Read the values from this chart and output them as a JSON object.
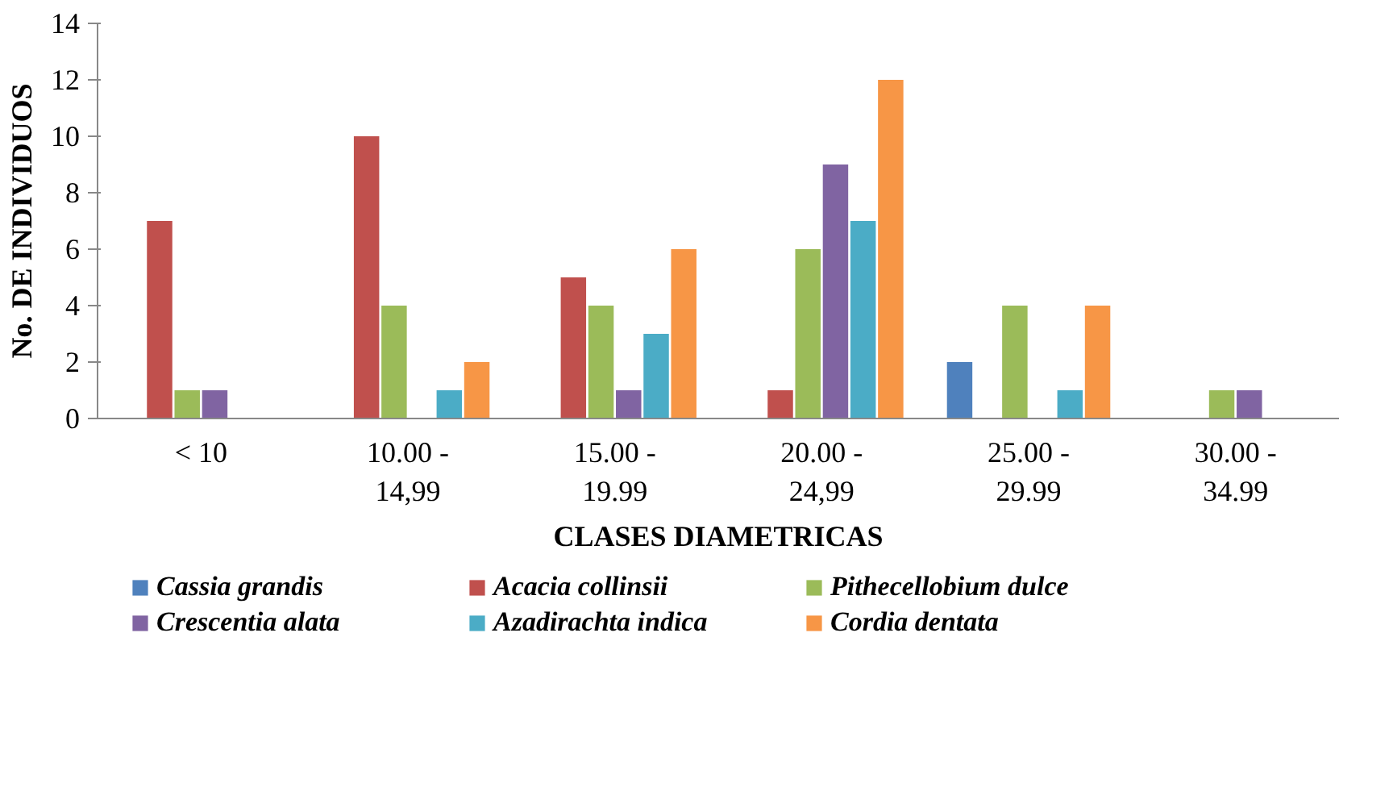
{
  "chart_data": {
    "type": "bar",
    "xlabel": "CLASES DIAMETRICAS",
    "ylabel": "No. DE INDIVIDUOS",
    "categories": [
      "< 10",
      "10.00 - 14,99",
      "15.00 - 19.99",
      "20.00 - 24,99",
      "25.00 - 29.99",
      "30.00 - 34.99"
    ],
    "series": [
      {
        "name": "Cassia grandis",
        "color": "#4f81bd",
        "values": [
          0,
          0,
          0,
          0,
          2,
          0
        ]
      },
      {
        "name": "Acacia collinsii",
        "color": "#c0504d",
        "values": [
          7,
          10,
          5,
          1,
          0,
          0
        ]
      },
      {
        "name": "Pithecellobium dulce",
        "color": "#9bbb59",
        "values": [
          1,
          4,
          4,
          6,
          4,
          1
        ]
      },
      {
        "name": "Crescentia alata",
        "color": "#8064a2",
        "values": [
          1,
          0,
          1,
          9,
          0,
          1
        ]
      },
      {
        "name": "Azadirachta indica",
        "color": "#4bacc6",
        "values": [
          0,
          1,
          3,
          7,
          1,
          0
        ]
      },
      {
        "name": "Cordia dentata",
        "color": "#f79646",
        "values": [
          0,
          2,
          6,
          12,
          4,
          0
        ]
      }
    ],
    "ylim": [
      0,
      14
    ],
    "yticks": [
      0,
      2,
      4,
      6,
      8,
      10,
      12,
      14
    ],
    "grid": false,
    "legend": "bottom"
  }
}
